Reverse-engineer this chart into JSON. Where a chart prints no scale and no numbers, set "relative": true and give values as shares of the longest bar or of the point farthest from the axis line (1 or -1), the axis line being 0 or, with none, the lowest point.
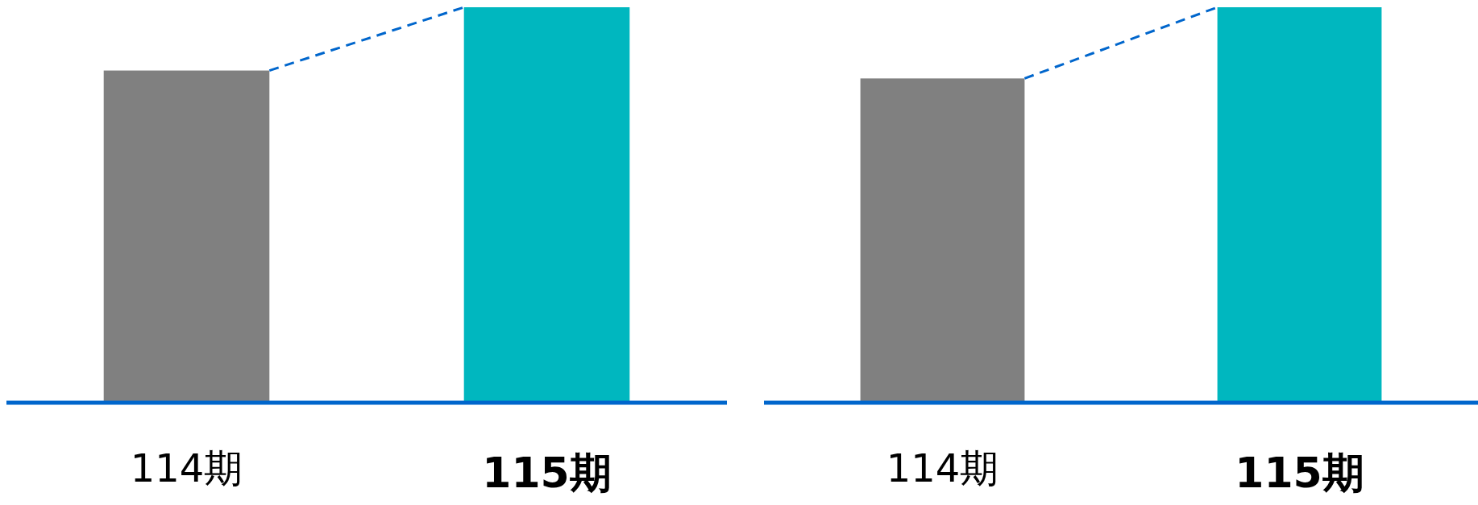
{
  "chart_data": [
    {
      "type": "bar",
      "relative": true,
      "categories": [
        "114期",
        "115期"
      ],
      "values": [
        0.84,
        1
      ],
      "colors": [
        "#808080",
        "#00b7bf"
      ]
    },
    {
      "type": "bar",
      "relative": true,
      "categories": [
        "114期",
        "115期"
      ],
      "values": [
        0.82,
        1
      ],
      "colors": [
        "#808080",
        "#00b7bf"
      ]
    }
  ]
}
